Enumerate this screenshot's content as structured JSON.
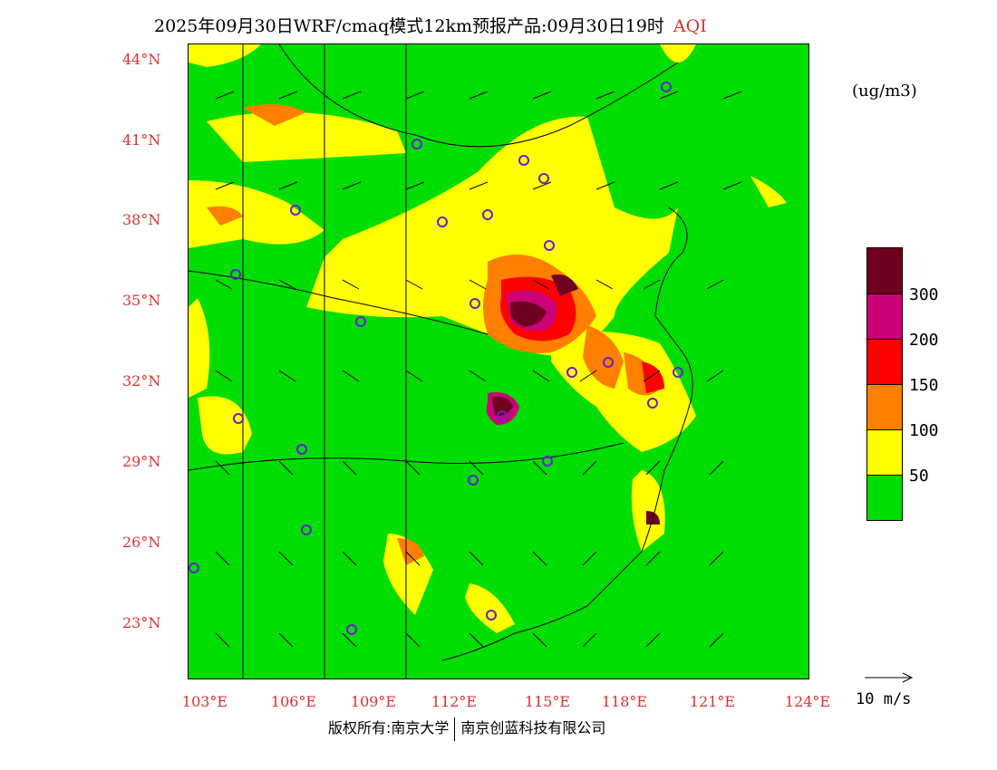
{
  "title": {
    "main": "2025年09月30日WRF/cmaq模式12km预报产品:09月30日19时",
    "variable": "AQI"
  },
  "unit": "(ug/m3)",
  "latitude_labels": [
    "44°N",
    "41°N",
    "38°N",
    "35°N",
    "32°N",
    "29°N",
    "26°N",
    "23°N"
  ],
  "longitude_labels": [
    "103°E",
    "106°E",
    "109°E",
    "112°E",
    "115°E",
    "118°E",
    "121°E",
    "124°E"
  ],
  "legend": {
    "colors": [
      "#6f0020",
      "#cc0077",
      "#ff0000",
      "#ff7f00",
      "#ffff00",
      "#00dd00"
    ],
    "labels": [
      "300",
      "200",
      "150",
      "100",
      "50"
    ]
  },
  "wind_reference": {
    "label": "10 m/s"
  },
  "copyright": {
    "left": "版权所有:南京大学",
    "right": "南京创蓝科技有限公司"
  },
  "colors": {
    "good": "#00dd00",
    "moderate": "#ffff00",
    "usg": "#ff7f00",
    "unhealthy": "#ff0000",
    "very_unhealthy": "#cc0077",
    "hazardous": "#6f0020",
    "label_red": "#e0302f",
    "station_ring": "#6a1fd0"
  }
}
